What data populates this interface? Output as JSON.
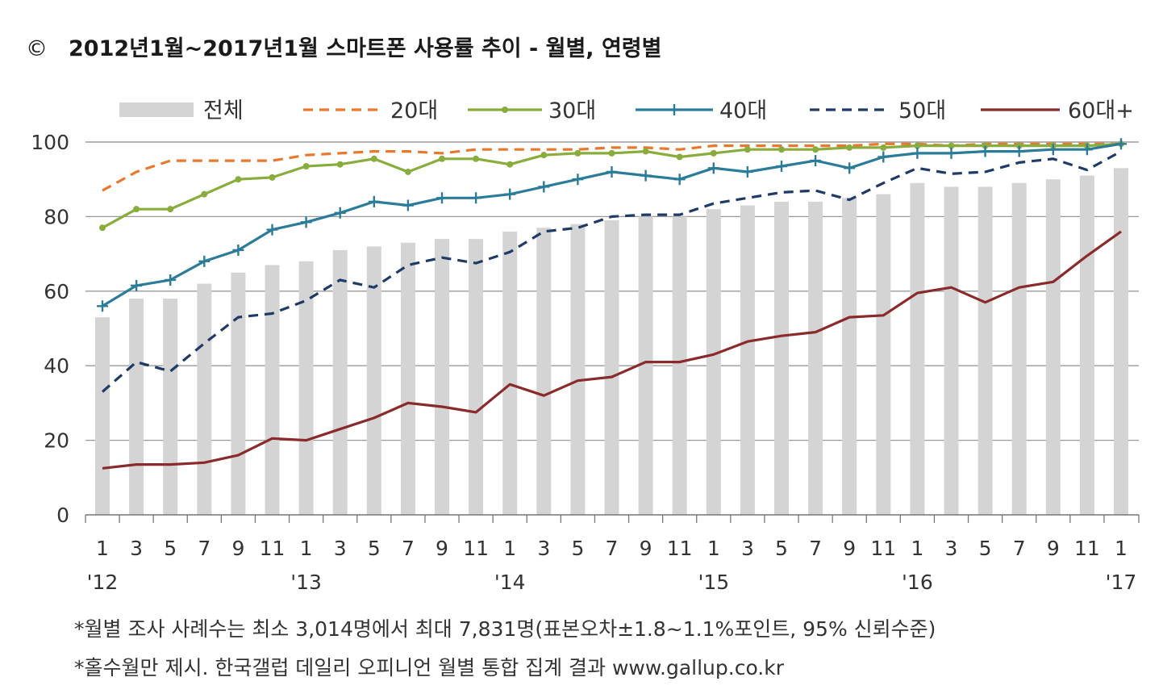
{
  "title": {
    "mark": "©",
    "text": "2012년1월~2017년1월 스마트폰 사용률 추이 - 월별, 연령별"
  },
  "notes": [
    "*월별 조사 사례수는 최소 3,014명에서 최대 7,831명(표본오차±1.8~1.1%포인트, 95% 신뢰수준)",
    "*홀수월만 제시. 한국갤럽 데일리 오피니언 월별 통합 집계 결과 www.gallup.co.kr"
  ],
  "chart_data": {
    "type": "bar+line",
    "ylim": [
      0,
      100
    ],
    "y_ticks": [
      0,
      20,
      40,
      60,
      80,
      100
    ],
    "grid": true,
    "legend_position": "top",
    "categories": [
      "1",
      "3",
      "5",
      "7",
      "9",
      "11",
      "1",
      "3",
      "5",
      "7",
      "9",
      "11",
      "1",
      "3",
      "5",
      "7",
      "9",
      "11",
      "1",
      "3",
      "5",
      "7",
      "9",
      "11",
      "1",
      "3",
      "5",
      "7",
      "9",
      "11",
      "1"
    ],
    "year_labels": [
      {
        "index": 0,
        "label": "'12"
      },
      {
        "index": 6,
        "label": "'13"
      },
      {
        "index": 12,
        "label": "'14"
      },
      {
        "index": 18,
        "label": "'15"
      },
      {
        "index": 24,
        "label": "'16"
      },
      {
        "index": 30,
        "label": "'17"
      }
    ],
    "bar_series": {
      "name": "전체",
      "color": "#d4d4d4",
      "values": [
        53,
        58,
        58,
        62,
        65,
        67,
        68,
        71,
        72,
        73,
        74,
        74,
        76,
        77,
        78,
        79,
        80,
        80,
        82,
        83,
        84,
        84,
        85,
        86,
        89,
        88,
        88,
        89,
        90,
        91,
        93
      ]
    },
    "line_series": [
      {
        "name": "20대",
        "color": "#e8782c",
        "style": "dashed",
        "marker": "none",
        "values": [
          87,
          92,
          95,
          95,
          95,
          95,
          96.5,
          97,
          97.5,
          97.5,
          97,
          98,
          98,
          98,
          98,
          98.5,
          98.5,
          98,
          99,
          99,
          99,
          99,
          99,
          99.5,
          99.5,
          99,
          99.5,
          99.5,
          99.5,
          99.5,
          99.5
        ]
      },
      {
        "name": "30대",
        "color": "#88ad3c",
        "style": "solid",
        "marker": "dot",
        "values": [
          77,
          82,
          82,
          86,
          90,
          90.5,
          93.5,
          94,
          95.5,
          92,
          95.5,
          95.5,
          94,
          96.5,
          97,
          97,
          97.5,
          96,
          97,
          98,
          98,
          98,
          98.5,
          98.5,
          99,
          99,
          99,
          99,
          99,
          99,
          99.5
        ]
      },
      {
        "name": "40대",
        "color": "#2b7c99",
        "style": "solid",
        "marker": "plus",
        "values": [
          56,
          61.5,
          63,
          68,
          71,
          76.5,
          78.5,
          81,
          84,
          83,
          85,
          85,
          86,
          88,
          90,
          92,
          91,
          90,
          93,
          92,
          93.5,
          95,
          93,
          96,
          97,
          97,
          97.5,
          97.5,
          98,
          98,
          99.5
        ]
      },
      {
        "name": "50대",
        "color": "#1f3a66",
        "style": "dashed",
        "marker": "none",
        "values": [
          33,
          41,
          38.5,
          46,
          53,
          54,
          57.5,
          63,
          61,
          67,
          69,
          67.5,
          70.5,
          76,
          77,
          80,
          80.5,
          80.5,
          83.5,
          85,
          86.5,
          87,
          84.5,
          89,
          93,
          91.5,
          92,
          94.5,
          95.5,
          92.5,
          97.5
        ]
      },
      {
        "name": "60대+",
        "color": "#8a2a2a",
        "style": "solid",
        "marker": "none",
        "values": [
          12.5,
          13.5,
          13.5,
          14,
          16,
          20.5,
          20,
          23,
          26,
          30,
          29,
          27.5,
          35,
          32,
          36,
          37,
          41,
          41,
          43,
          46.5,
          48,
          49,
          53,
          53.5,
          59.5,
          61,
          57,
          61,
          62.5,
          69.5,
          76
        ]
      }
    ]
  }
}
